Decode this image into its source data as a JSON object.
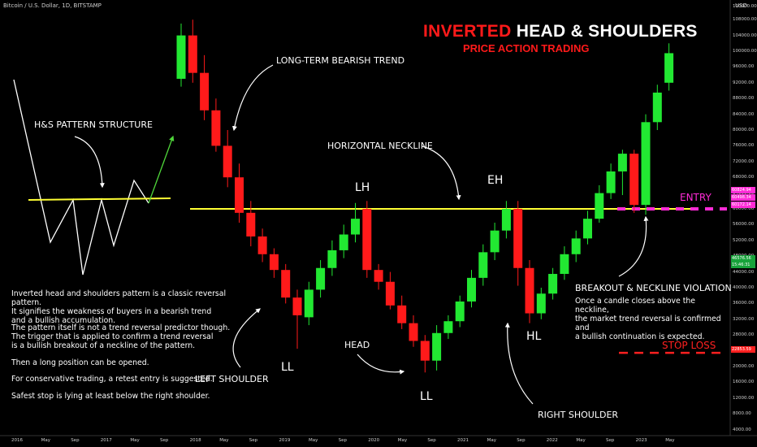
{
  "header": {
    "symbol": "Bitcoin / U.S. Dollar, 1D, BITSTAMP",
    "currency": "USD"
  },
  "title": {
    "part1": "INVERTED",
    "part2": " HEAD & SHOULDERS",
    "subtitle": "PRICE ACTION TRADING"
  },
  "labels": {
    "pattern_structure": "H&S PATTERN STRUCTURE",
    "bearish_trend": "LONG-TERM BEARISH TREND",
    "neckline": "HORIZONTAL NECKLINE",
    "left_shoulder": "LEFT SHOULDER",
    "head": "HEAD",
    "right_shoulder": "RIGHT SHOULDER",
    "breakout_title": "BREAKOUT & NECKLINE VIOLATION",
    "breakout_text": "Once a candle closes above the neckline,\nthe market trend reversal is confirmed and\na bullish continuation is expected.",
    "entry": "ENTRY",
    "stop_loss": "STOP LOSS",
    "LH": "LH",
    "EH": "EH",
    "HL": "HL",
    "LL1": "LL",
    "LL2": "LL"
  },
  "description": {
    "p1": "Inverted head and shoulders pattern is a classic reversal pattern.\nIt signifies the weakness of buyers in a bearish trend\nand a bullish accumulation.",
    "p2": "The pattern itself is not a trend reversal predictor though.\nThe trigger that is applied to confirm a trend reversal\nis a bullish breakout of a neckline of the pattern.",
    "p3": "Then a long position can be opened.",
    "p4": "For conservative trading, a retest entry is suggested.",
    "p5": "Safest stop is lying at least below the right shoulder."
  },
  "price_labels": {
    "entry_top": "60824.94",
    "entry_mid": "60498.34",
    "entry_bot": "60172.14",
    "current": "46576.56",
    "current_time": "15:46:31",
    "stop": "22853.59"
  },
  "colors": {
    "bull": "#22e832",
    "bear": "#ff1a1a",
    "neckline": "#ffff33",
    "entry": "#ff2bd6",
    "stop": "#ff2020"
  },
  "chart_data": {
    "type": "candlestick",
    "y_axis_ticks": [
      "110000.00",
      "108000.00",
      "104000.00",
      "100000.00",
      "96000.00",
      "92000.00",
      "88000.00",
      "84000.00",
      "80000.00",
      "76000.00",
      "72000.00",
      "68000.00",
      "64000.00",
      "60000.00",
      "56000.00",
      "52000.00",
      "48000.00",
      "44000.00",
      "40000.00",
      "36000.00",
      "32000.00",
      "28000.00",
      "24000.00",
      "20000.00",
      "16000.00",
      "12000.00",
      "8000.00",
      "4000.00"
    ],
    "x_axis_ticks": [
      "2016",
      "May",
      "Sep",
      "2017",
      "May",
      "Sep",
      "2018",
      "May",
      "Sep",
      "2019",
      "May",
      "Sep",
      "2020",
      "May",
      "Sep",
      "2021",
      "May",
      "Sep",
      "2022",
      "May",
      "Sep",
      "2023",
      "May"
    ],
    "neckline": 60000,
    "entry": 60000,
    "stop_loss": 22853.59,
    "candles": [
      {
        "o": 93000,
        "h": 107000,
        "l": 91000,
        "c": 104000
      },
      {
        "o": 104000,
        "h": 108000,
        "l": 92000,
        "c": 94500
      },
      {
        "o": 94500,
        "h": 99000,
        "l": 82500,
        "c": 85000
      },
      {
        "o": 85000,
        "h": 88000,
        "l": 74500,
        "c": 76000
      },
      {
        "o": 76000,
        "h": 80000,
        "l": 65500,
        "c": 68000
      },
      {
        "o": 68000,
        "h": 71500,
        "l": 56500,
        "c": 59000
      },
      {
        "o": 59000,
        "h": 62000,
        "l": 50500,
        "c": 53000
      },
      {
        "o": 53000,
        "h": 55000,
        "l": 46500,
        "c": 48500
      },
      {
        "o": 48500,
        "h": 50000,
        "l": 42500,
        "c": 44500
      },
      {
        "o": 44500,
        "h": 46000,
        "l": 36000,
        "c": 37500
      },
      {
        "o": 37500,
        "h": 39500,
        "l": 24500,
        "c": 33000
      },
      {
        "o": 32500,
        "h": 41500,
        "l": 30500,
        "c": 39500
      },
      {
        "o": 39500,
        "h": 47000,
        "l": 37500,
        "c": 45000
      },
      {
        "o": 45000,
        "h": 52000,
        "l": 43000,
        "c": 49500
      },
      {
        "o": 49500,
        "h": 56000,
        "l": 47500,
        "c": 53500
      },
      {
        "o": 53500,
        "h": 61500,
        "l": 51500,
        "c": 57500
      },
      {
        "o": 60000,
        "h": 62000,
        "l": 42500,
        "c": 44500
      },
      {
        "o": 44500,
        "h": 46000,
        "l": 39500,
        "c": 41500
      },
      {
        "o": 41500,
        "h": 44000,
        "l": 34500,
        "c": 35500
      },
      {
        "o": 35500,
        "h": 38000,
        "l": 29500,
        "c": 31000
      },
      {
        "o": 31000,
        "h": 33000,
        "l": 25000,
        "c": 26500
      },
      {
        "o": 26500,
        "h": 28000,
        "l": 18500,
        "c": 21500
      },
      {
        "o": 21500,
        "h": 30500,
        "l": 19000,
        "c": 28500
      },
      {
        "o": 28500,
        "h": 33000,
        "l": 27000,
        "c": 31500
      },
      {
        "o": 31500,
        "h": 38000,
        "l": 30000,
        "c": 36500
      },
      {
        "o": 36500,
        "h": 44500,
        "l": 35000,
        "c": 42500
      },
      {
        "o": 42500,
        "h": 51000,
        "l": 40500,
        "c": 49000
      },
      {
        "o": 49000,
        "h": 56500,
        "l": 47000,
        "c": 54500
      },
      {
        "o": 54500,
        "h": 62000,
        "l": 52500,
        "c": 60000
      },
      {
        "o": 60000,
        "h": 62000,
        "l": 40500,
        "c": 45000
      },
      {
        "o": 45000,
        "h": 47000,
        "l": 31000,
        "c": 33500
      },
      {
        "o": 33500,
        "h": 40000,
        "l": 32000,
        "c": 38500
      },
      {
        "o": 38500,
        "h": 45000,
        "l": 37000,
        "c": 43500
      },
      {
        "o": 43500,
        "h": 50500,
        "l": 42000,
        "c": 48500
      },
      {
        "o": 48500,
        "h": 54500,
        "l": 46500,
        "c": 52500
      },
      {
        "o": 52500,
        "h": 59500,
        "l": 51000,
        "c": 57500
      },
      {
        "o": 57500,
        "h": 66000,
        "l": 56500,
        "c": 64000
      },
      {
        "o": 64000,
        "h": 71500,
        "l": 62500,
        "c": 69500
      },
      {
        "o": 69500,
        "h": 75000,
        "l": 63500,
        "c": 74000
      },
      {
        "o": 74000,
        "h": 75000,
        "l": 59000,
        "c": 61000
      },
      {
        "o": 61000,
        "h": 84000,
        "l": 58500,
        "c": 82000
      },
      {
        "o": 82000,
        "h": 91500,
        "l": 80000,
        "c": 89500
      },
      {
        "o": 92000,
        "h": 102000,
        "l": 90000,
        "c": 99500
      }
    ]
  }
}
